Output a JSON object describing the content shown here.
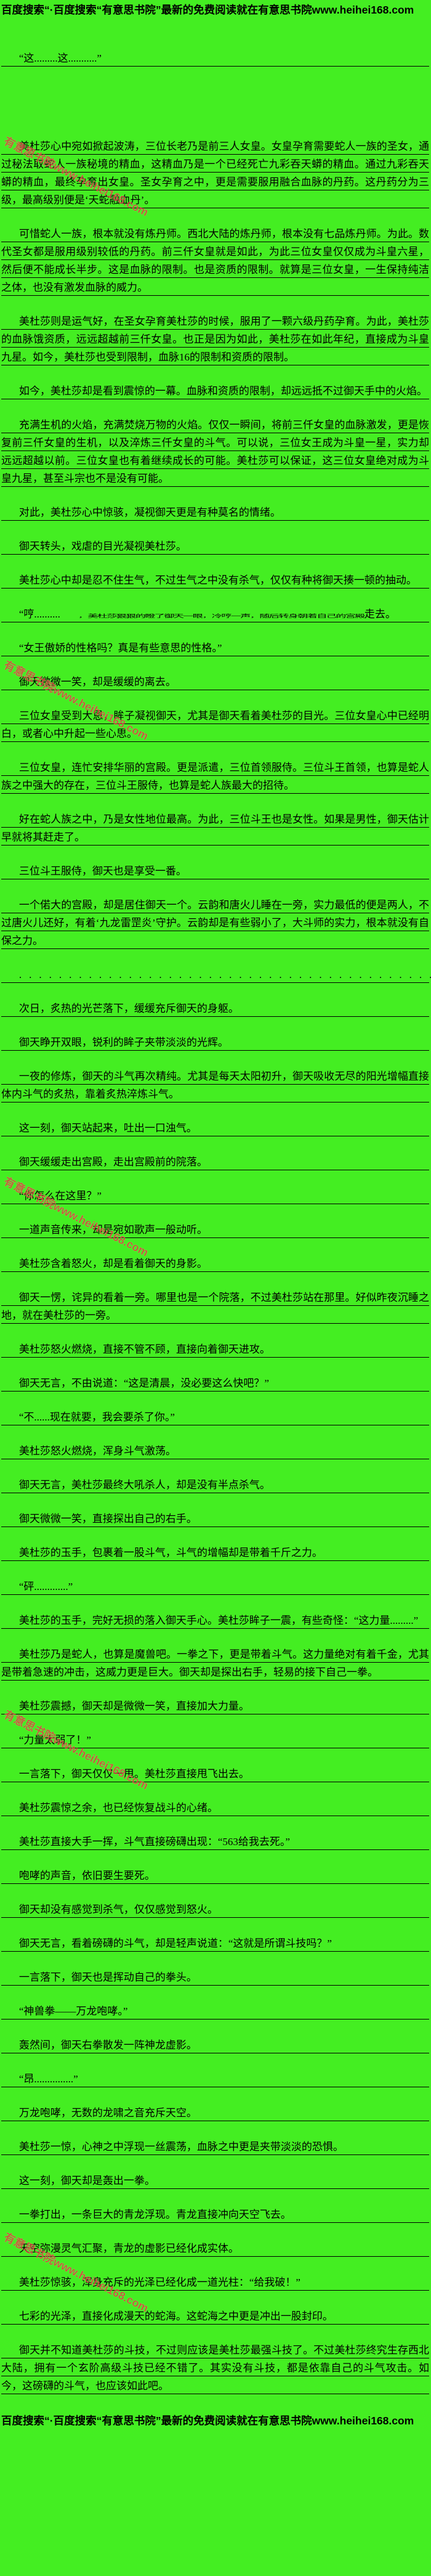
{
  "page": {
    "background_color": "#44ee22",
    "text_color": "#000000"
  },
  "banner": {
    "text": "百度搜索“·百度搜索“有意思书院”最新的免费阅读就在有意思书院www.heihei168.com"
  },
  "watermark": {
    "text": "有意思书院www.heihei168.com",
    "color": "#e0413f",
    "positions_y": [
      215,
      1065,
      1903,
      2768,
      3616
    ]
  },
  "paragraphs": [
    {
      "type": "normal",
      "class": "first",
      "text": "“这.........这...........”"
    },
    {
      "type": "normal",
      "text": "美杜莎心中宛如掀起波涛，三位长老乃是前三人女皇。女皇孕育需要蛇人一族的圣女，通过秘法取蛇人一族秘境的精血，这精血乃是一个已经死亡九彩吞天蟒的精血。通过九彩吞天蟒的精血，最终孕育出女皇。圣女孕育之中，更是需要服用融合血脉的丹药。这丹药分为三级，最高级别便是‘天蛇融血丹’。"
    },
    {
      "type": "normal",
      "text": "可惜蛇人一族，根本就没有炼丹师。西北大陆的炼丹师，根本没有七品炼丹师。为此。数代圣女都是服用级别较低的丹药。前三仟女皇就是如此，为此三位女皇仅仅成为斗皇六星，然后便不能成长半步。这是血脉的限制。也是资质的限制。就算是三位女皇，一生保持纯洁之体，也没有激发血脉的威力。"
    },
    {
      "type": "normal",
      "text": "美杜莎则是运气好，在圣女孕育美杜莎的时候，服用了一颗六级丹药孕育。为此，美杜莎的血脉饿资质，远远超越前三仟女皇。也正是因为如此，美杜莎在如此年纪，直接成为斗皇九星。如今，美杜莎也受到限制，血脉16的限制和资质的限制。"
    },
    {
      "type": "normal",
      "text": "如今，美杜莎却是看到震惊的一幕。血脉和资质的限制，却远远抵不过御天手中的火焰。"
    },
    {
      "type": "normal",
      "text": "充满生机的火焰，充满焚烧万物的火焰。仅仅一瞬间，将前三仟女皇的血脉激发，更是恢复前三仟女皇的生机，以及淬炼三仟女皇的斗气。可以说，三位女王成为斗皇一星，实力却远远超越以前。三位女皇也有着继续成长的可能。美杜莎可以保证，这三位女皇绝对成为斗皇九星，甚至斗宗也不是没有可能。"
    },
    {
      "type": "normal",
      "text": "对此，美杜莎心中惊骇，凝视御天更是有种莫名的情绪。"
    },
    {
      "type": "normal",
      "text": "御天转头，戏虐的目光凝视美杜莎。"
    },
    {
      "type": "normal",
      "text": "美杜莎心中却是忍不住生气，不过生气之中没有杀气，仅仅有种将御天揍一顿的抽动。"
    },
    {
      "type": "squished",
      "pre": "“哼..........",
      "squished": "，美杜莎狠狠的瞪了御天一眼，冷哼一声，随后转身朝着自己的宫殿",
      "post": "走去。"
    },
    {
      "type": "normal",
      "text": "“女王傲娇的性格吗？真是有些意思的性格。”"
    },
    {
      "type": "normal",
      "text": "御天微微一笑，却是缓缓的离去。"
    },
    {
      "type": "normal",
      "text": "三位女皇受到大恩，眸子凝视御天，尤其是御天看着美杜莎的目光。三位女皇心中已经明白，或者心中升起一些心思。"
    },
    {
      "type": "normal",
      "text": "三位女皇，连忙安排华丽的宫殿。更是派遣，三位首领服侍。三位斗王首领，也算是蛇人族之中强大的存在，三位斗王服侍，也算是蛇人族最大的招待。"
    },
    {
      "type": "normal",
      "text": "好在蛇人族之中，乃是女性地位最高。为此，三位斗王也是女性。如果是男性，御天估计早就将其赶走了。"
    },
    {
      "type": "normal",
      "text": "三位斗王服侍，御天也是享受一番。"
    },
    {
      "type": "normal",
      "text": "一个偌大的宫殿，却是居住御天一个。云韵和唐火儿睡在一旁，实力最低的便是两人，不过唐火儿还好，有着‘九龙雷罡炎’守护。云韵却是有些弱小了，大斗师的实力，根本就没有自保之力。"
    },
    {
      "type": "dots",
      "text": ".........................................."
    },
    {
      "type": "normal",
      "text": "次日，炙热的光芒落下，缓缓充斥御天的身躯。"
    },
    {
      "type": "normal",
      "text": "御天睁开双眼，锐利的眸子夹带淡淡的光辉。"
    },
    {
      "type": "normal",
      "text": "一夜的修炼，御天的斗气再次精纯。尤其是每天太阳初升，御天吸收无尽的阳光增幅直接体内斗气的炙热，靠着炙热淬炼斗气。"
    },
    {
      "type": "normal",
      "text": "这一刻，御天站起来，吐出一口浊气。"
    },
    {
      "type": "normal",
      "text": "御天缓缓走出宫殿，走出宫殿前的院落。"
    },
    {
      "type": "normal",
      "text": "“你怎么在这里？”"
    },
    {
      "type": "normal",
      "text": "一道声音传来，却是宛如歌声一般动听。"
    },
    {
      "type": "normal",
      "text": "美杜莎含着怒火，却是看着御天的身影。"
    },
    {
      "type": "normal",
      "text": "御天一愣，诧异的看着一旁。哪里也是一个院落，不过美杜莎站在那里。好似昨夜沉睡之地，就在美杜莎的一旁。"
    },
    {
      "type": "normal",
      "text": "美杜莎怒火燃烧，直接不管不顾，直接向着御天进攻。"
    },
    {
      "type": "normal",
      "text": "御天无言，不由说道：“这是清晨，没必要这么快吧？”"
    },
    {
      "type": "normal",
      "text": "“不......现在就要，我会要杀了你。”"
    },
    {
      "type": "normal",
      "text": "美杜莎怒火燃烧，浑身斗气激荡。"
    },
    {
      "type": "normal",
      "text": "御天无言，美杜莎最终大吼杀人，却是没有半点杀气。"
    },
    {
      "type": "normal",
      "text": "御天微微一笑，直接探出自己的右手。"
    },
    {
      "type": "normal",
      "text": "美杜莎的玉手，包裹着一股斗气，斗气的增幅却是带着千斤之力。"
    },
    {
      "type": "normal",
      "text": "“砰.............”"
    },
    {
      "type": "normal",
      "text": "美杜莎的玉手，完好无损的落入御天手心。美杜莎眸子一震，有些奇怪：“这力量.........”"
    },
    {
      "type": "normal",
      "text": "美杜莎乃是蛇人，也算是魔兽吧。一拳之下，更是带着斗气。这力量绝对有着千金，尤其是带着急速的冲击，这威力更是巨大。御天却是探出右手，轻易的接下自己一拳。"
    },
    {
      "type": "normal",
      "text": "美杜莎震撼，御天却是微微一笑，直接加大力量。"
    },
    {
      "type": "normal",
      "text": "“力量太弱了！”"
    },
    {
      "type": "normal",
      "text": "一言落下，御天仅仅一甩。美杜莎直接甩飞出去。"
    },
    {
      "type": "normal",
      "text": "美杜莎震惊之余，也已经恢复战斗的心绪。"
    },
    {
      "type": "normal",
      "text": "美杜莎直接大手一挥，斗气直接磅礴出现：“563给我去死。”"
    },
    {
      "type": "normal",
      "text": "咆哮的声音，依旧要生要死。"
    },
    {
      "type": "normal",
      "text": "御天却没有感觉到杀气，仅仅感觉到怒火。"
    },
    {
      "type": "normal",
      "text": "御天无言，看着磅礴的斗气，却是轻声说道：“这就是所谓斗技吗？”"
    },
    {
      "type": "normal",
      "text": "一言落下，御天也是挥动自己的拳头。"
    },
    {
      "type": "normal",
      "text": "“神兽拳——万龙咆哮。”"
    },
    {
      "type": "normal",
      "text": "轰然间，御天右拳散发一阵神龙虚影。"
    },
    {
      "type": "normal",
      "text": "“昂...............”"
    },
    {
      "type": "normal",
      "text": "万龙咆哮，无数的龙啸之音充斥天空。"
    },
    {
      "type": "normal",
      "text": "美杜莎一惊，心神之中浮现一丝震荡，血脉之中更是夹带淡淡的恐惧。"
    },
    {
      "type": "normal",
      "text": "这一刻，御天却是轰出一拳。"
    },
    {
      "type": "normal",
      "text": "一拳打出，一条巨大的青龙浮现。青龙直接冲向天空飞去。"
    },
    {
      "type": "normal",
      "text": "天空弥漫灵气汇聚，青龙的虚影已经化成实体。"
    },
    {
      "type": "normal",
      "text": "美杜莎惊骇，浑身充斥的光泽已经化成一道光柱：“给我破！”"
    },
    {
      "type": "normal",
      "text": "七彩的光泽，直接化成漫天的蛇海。这蛇海之中更是冲出一股封印。"
    },
    {
      "type": "normal",
      "text": "御天并不知道美杜莎的斗技，不过则应该是美杜莎最强斗技了。不过美杜莎终究生存西北大陆，拥有一个玄阶高级斗技已经不错了。其实没有斗技，都是依靠自己的斗气攻击。如今，这磅礴的斗气，也应该如此吧。"
    }
  ]
}
